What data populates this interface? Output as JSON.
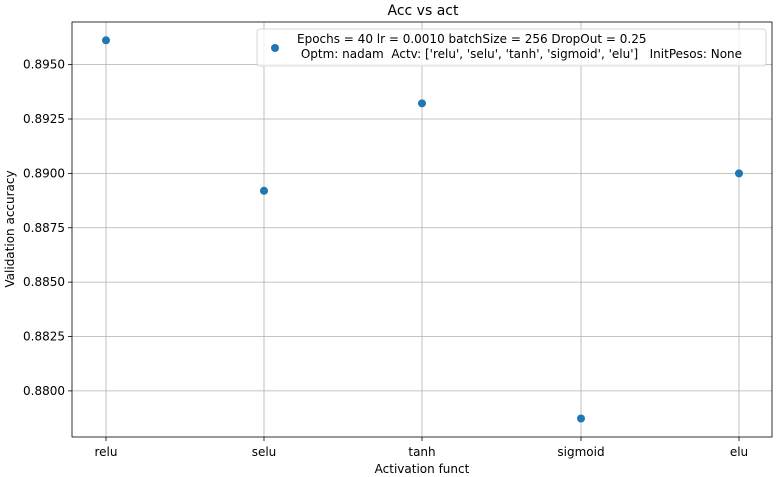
{
  "chart_data": {
    "type": "scatter",
    "title": "Acc vs act",
    "xlabel": "Activation funct",
    "ylabel": "Validation accuracy",
    "categories": [
      "relu",
      "selu",
      "tanh",
      "sigmoid",
      "elu"
    ],
    "series": [
      {
        "name": "Epochs = 40 lr = 0.0010 batchSize = 256 DropOut = 0.25\n Optm: nadam  Actv: ['relu', 'selu', 'tanh', 'sigmoid', 'elu']   InitPesos: None",
        "values": [
          0.89612,
          0.8892,
          0.89322,
          0.87873,
          0.89
        ],
        "color": "#1f77b4"
      }
    ],
    "yticks": [
      "0.8800",
      "0.8825",
      "0.8850",
      "0.8875",
      "0.8900",
      "0.8925",
      "0.8950"
    ],
    "ylim": [
      0.87788,
      0.89696
    ],
    "grid": true,
    "legend_position": "top-right"
  }
}
